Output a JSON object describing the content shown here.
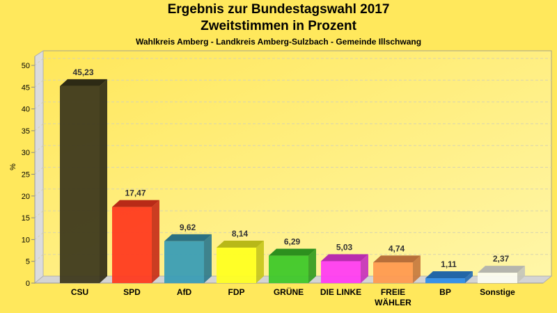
{
  "chart_data": {
    "type": "bar",
    "title": "Ergebnis zur Bundestagswahl 2017",
    "subtitle": "Zweitstimmen in Prozent",
    "subtitle2": "Wahlkreis Amberg - Landkreis Amberg-Sulzbach - Gemeinde Illschwang",
    "xlabel": "",
    "ylabel": "%",
    "ylim": [
      0,
      50
    ],
    "yticks": [
      "0",
      "5",
      "10",
      "15",
      "20",
      "25",
      "30",
      "35",
      "40",
      "45",
      "50"
    ],
    "grid": true,
    "categories": [
      "CSU",
      "SPD",
      "AfD",
      "FDP",
      "GRÜNE",
      "DIE LINKE",
      "FREIE WÄHLER",
      "BP",
      "Sonstige"
    ],
    "category_lines": [
      [
        "CSU"
      ],
      [
        "SPD"
      ],
      [
        "AfD"
      ],
      [
        "FDP"
      ],
      [
        "GRÜNE"
      ],
      [
        "DIE LINKE"
      ],
      [
        "FREIE",
        "WÄHLER"
      ],
      [
        "BP"
      ],
      [
        "Sonstige"
      ]
    ],
    "values": [
      45.23,
      17.47,
      9.62,
      8.14,
      6.29,
      5.03,
      4.74,
      1.11,
      2.37
    ],
    "value_labels": [
      "45,23",
      "17,47",
      "9,62",
      "8,14",
      "6,29",
      "5,03",
      "4,74",
      "1,11",
      "2,37"
    ],
    "colors": [
      "#3f3a1d",
      "#ff3b20",
      "#3b9db5",
      "#ffff22",
      "#3fc82a",
      "#ff3df2",
      "#ff9a50",
      "#2f8de8",
      "#fbfbf0"
    ]
  }
}
